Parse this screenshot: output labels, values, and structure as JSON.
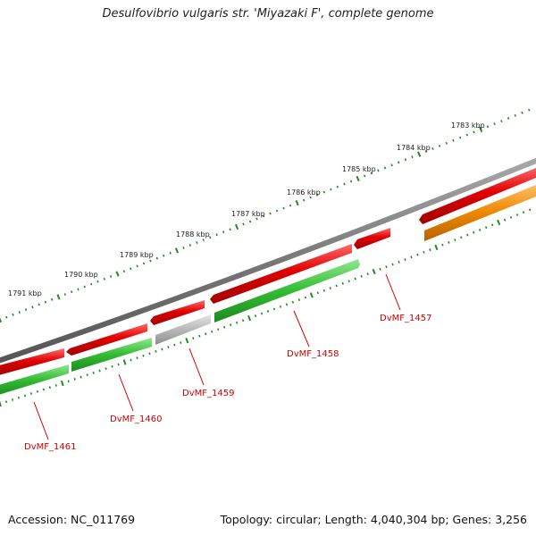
{
  "title": "Desulfovibrio vulgaris str. 'Miyazaki F', complete genome",
  "footer": {
    "accession": "Accession: NC_011769",
    "summary": "Topology: circular; Length: 4,040,304 bp; Genes: 3,256"
  },
  "colors": {
    "backbone": "#808080",
    "forward_strand": "#e00000",
    "reverse_strand_green": "#33bb33",
    "reverse_strand_grey": "#b0b0b0",
    "reverse_strand_orange": "#ee8800",
    "tick": "#228b22",
    "label": "#cc0000"
  },
  "ruler": {
    "ticks": [
      "1783 kbp",
      "1784 kbp",
      "1785 kbp",
      "1786 kbp",
      "1787 kbp",
      "1788 kbp",
      "1789 kbp",
      "1790 kbp",
      "1791 kbp"
    ]
  },
  "genes": [
    {
      "strand": "forward",
      "color": "red"
    },
    {
      "strand": "forward",
      "color": "red"
    },
    {
      "strand": "forward",
      "color": "red"
    },
    {
      "strand": "forward",
      "color": "red"
    },
    {
      "strand": "forward",
      "color": "red"
    },
    {
      "strand": "forward",
      "color": "red"
    },
    {
      "strand": "forward",
      "color": "red"
    },
    {
      "strand": "reverse",
      "color": "orange"
    },
    {
      "strand": "reverse",
      "color": "green",
      "label": "DvMF_1458"
    },
    {
      "strand": "reverse",
      "color": "grey",
      "label": "DvMF_1459"
    },
    {
      "strand": "reverse",
      "color": "green",
      "label": "DvMF_1460"
    },
    {
      "strand": "reverse",
      "color": "green",
      "label": "DvMF_1461"
    }
  ],
  "labels": {
    "l1457": "DvMF_1457",
    "l1458": "DvMF_1458",
    "l1459": "DvMF_1459",
    "l1460": "DvMF_1460",
    "l1461": "DvMF_1461"
  }
}
